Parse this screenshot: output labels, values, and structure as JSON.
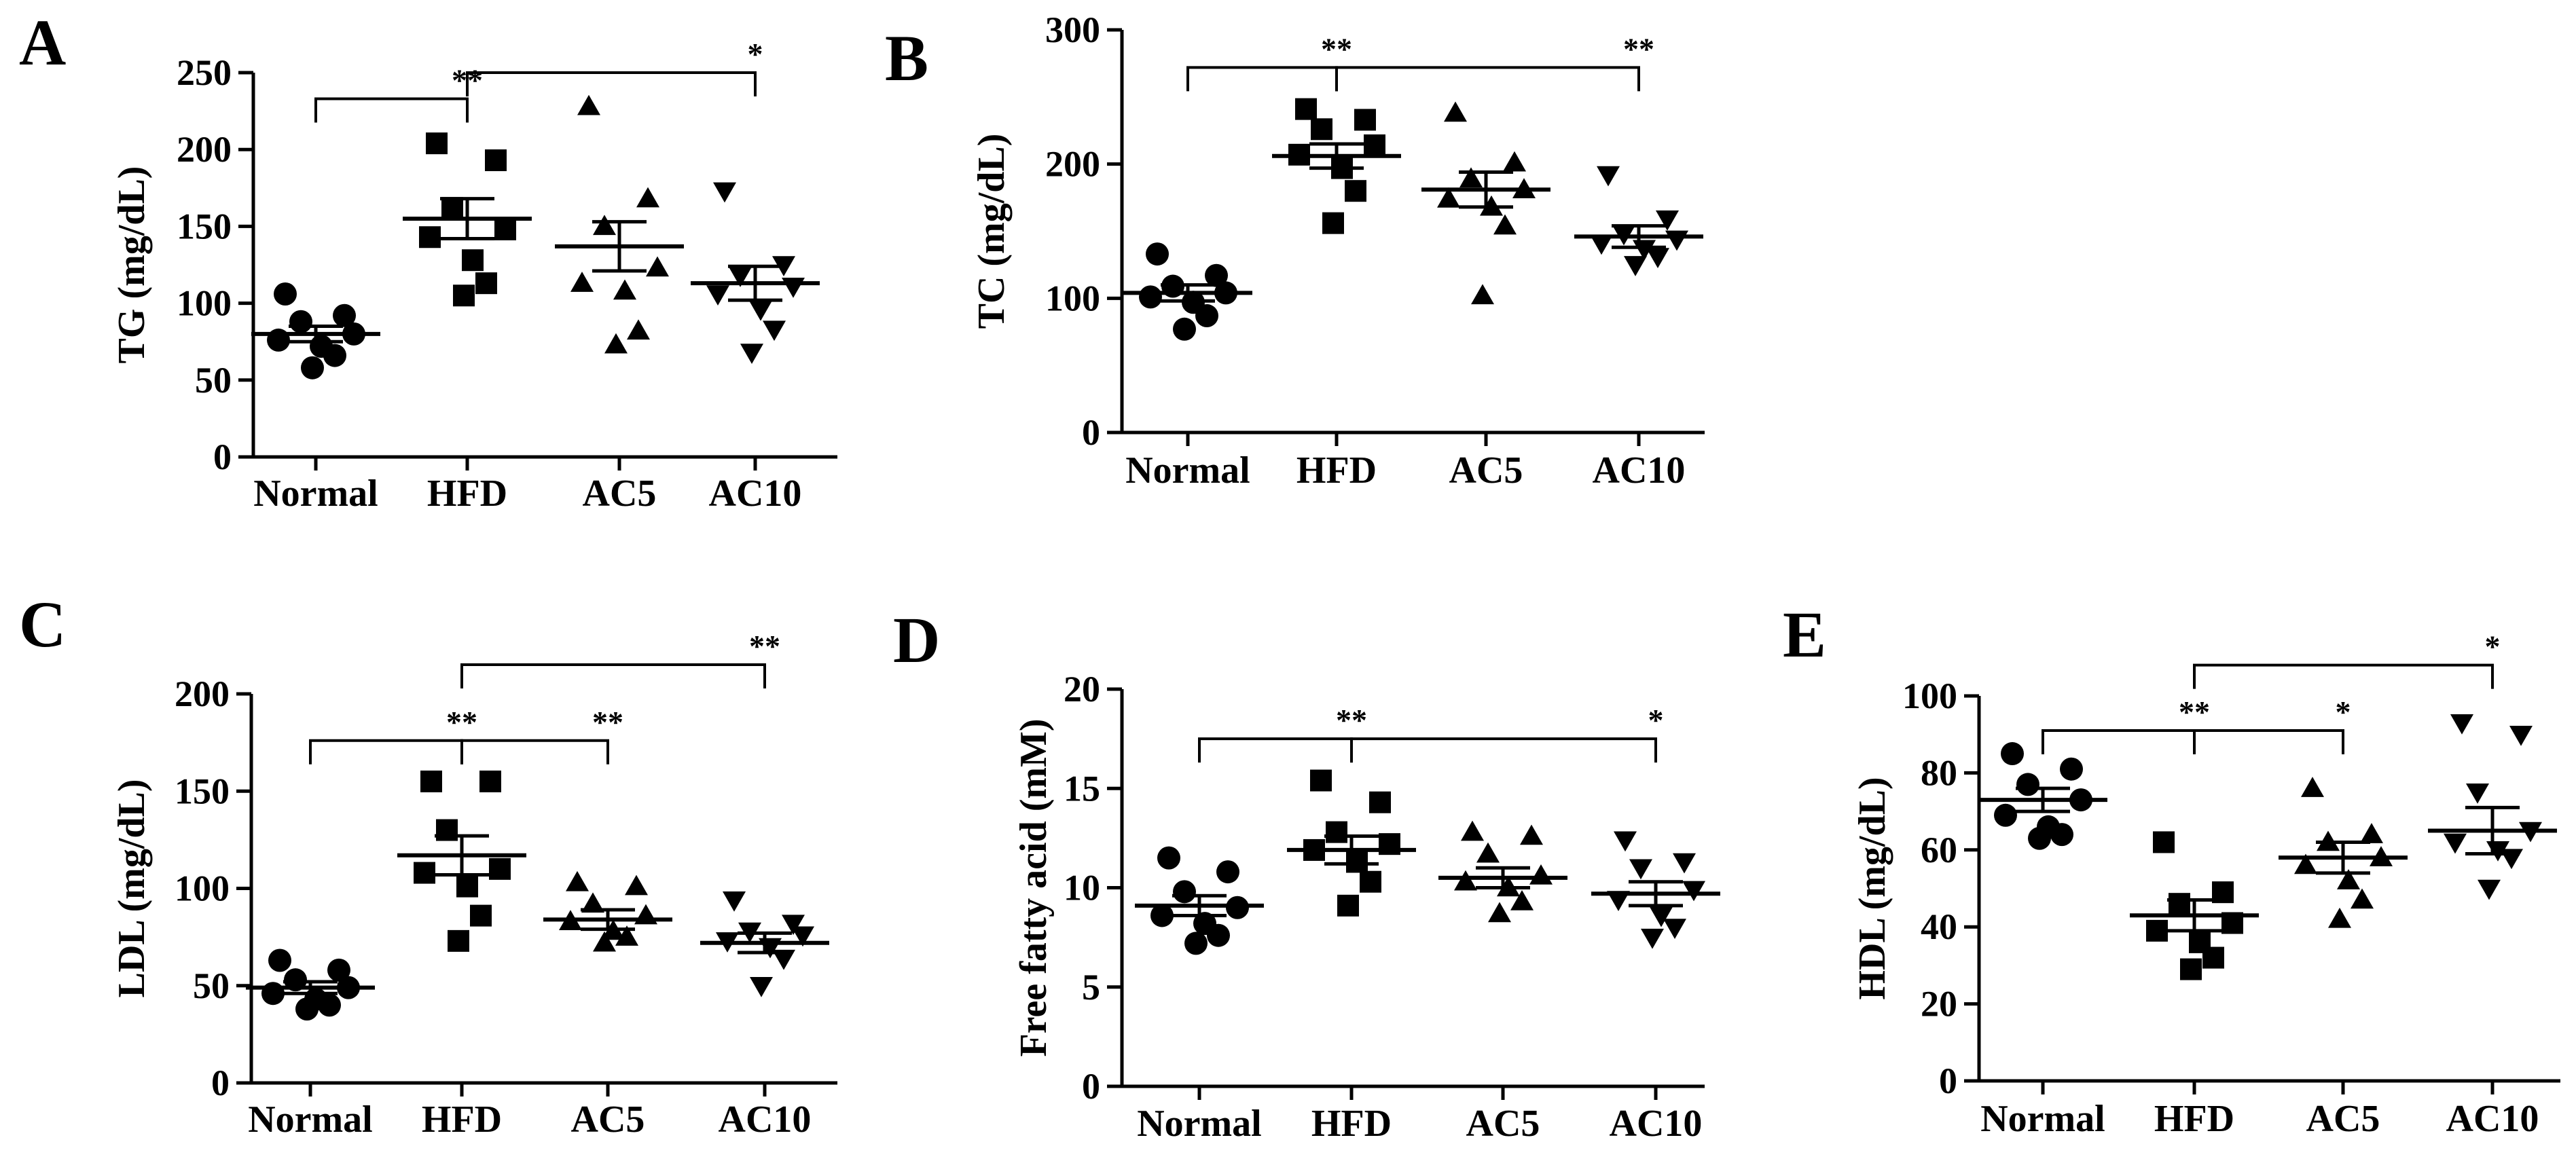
{
  "figure": {
    "groups": [
      "Normal",
      "HFD",
      "AC5",
      "AC10"
    ]
  },
  "chart_data": [
    {
      "panel": "A",
      "type": "scatter",
      "ylabel": "TG (mg/dL)",
      "ylim": [
        0,
        250
      ],
      "yticks": [
        0,
        50,
        100,
        150,
        200,
        250
      ],
      "categories": [
        "Normal",
        "HFD",
        "AC5",
        "AC10"
      ],
      "markers": [
        "circle",
        "square",
        "triangle-up",
        "triangle-down"
      ],
      "points": [
        [
          106,
          92,
          88,
          80,
          76,
          72,
          66,
          58
        ],
        [
          204,
          193,
          162,
          148,
          143,
          128,
          113,
          105
        ],
        [
          228,
          168,
          150,
          123,
          113,
          108,
          82,
          73
        ],
        [
          173,
          125,
          118,
          111,
          106,
          96,
          83,
          68
        ]
      ],
      "mean": [
        80,
        155,
        137,
        113
      ],
      "sem": [
        5,
        13,
        16,
        11
      ],
      "annotations": [
        {
          "from": 0,
          "to": 1,
          "y": 233,
          "label": "**"
        },
        {
          "from": 1,
          "to": 3,
          "y": 250,
          "label": "*"
        }
      ]
    },
    {
      "panel": "B",
      "type": "scatter",
      "ylabel": "TC (mg/dL)",
      "ylim": [
        0,
        300
      ],
      "yticks": [
        0,
        100,
        200,
        300
      ],
      "categories": [
        "Normal",
        "HFD",
        "AC5",
        "AC10"
      ],
      "markers": [
        "circle",
        "square",
        "triangle-up",
        "triangle-down"
      ],
      "points": [
        [
          133,
          117,
          109,
          104,
          101,
          97,
          87,
          77
        ],
        [
          241,
          233,
          226,
          214,
          207,
          197,
          180,
          156
        ],
        [
          238,
          201,
          189,
          181,
          174,
          168,
          154,
          102
        ],
        [
          192,
          159,
          148,
          144,
          141,
          137,
          131,
          125
        ]
      ],
      "mean": [
        104,
        206,
        181,
        146
      ],
      "sem": [
        6,
        9,
        13,
        8
      ],
      "annotations": [
        {
          "from": 0,
          "to": 1,
          "y": 272,
          "label": "**"
        },
        {
          "from": 1,
          "to": 3,
          "y": 272,
          "label": "**"
        }
      ]
    },
    {
      "panel": "C",
      "type": "scatter",
      "ylabel": "LDL (mg/dL)",
      "ylim": [
        0,
        200
      ],
      "yticks": [
        0,
        50,
        100,
        150,
        200
      ],
      "categories": [
        "Normal",
        "HFD",
        "AC5",
        "AC10"
      ],
      "markers": [
        "circle",
        "square",
        "triangle-up",
        "triangle-down"
      ],
      "points": [
        [
          63,
          58,
          53,
          49,
          46,
          43,
          40,
          38
        ],
        [
          155,
          155,
          130,
          110,
          108,
          101,
          86,
          73
        ],
        [
          103,
          101,
          92,
          86,
          83,
          78,
          75,
          72
        ],
        [
          94,
          82,
          78,
          76,
          73,
          70,
          64,
          50
        ]
      ],
      "mean": [
        49,
        117,
        84,
        72
      ],
      "sem": [
        3,
        10,
        5,
        5
      ],
      "annotations": [
        {
          "from": 0,
          "to": 1,
          "y": 176,
          "label": "**"
        },
        {
          "from": 1,
          "to": 2,
          "y": 176,
          "label": "**"
        },
        {
          "from": 1,
          "to": 3,
          "y": 215,
          "label": "**"
        }
      ]
    },
    {
      "panel": "D",
      "type": "scatter",
      "ylabel": "Free fatty acid (mM)",
      "ylim": [
        0,
        20
      ],
      "yticks": [
        0,
        5,
        10,
        15,
        20
      ],
      "categories": [
        "Normal",
        "HFD",
        "AC5",
        "AC10"
      ],
      "markers": [
        "circle",
        "square",
        "triangle-up",
        "triangle-down"
      ],
      "points": [
        [
          11.5,
          10.8,
          9.8,
          9.0,
          8.6,
          8.2,
          7.6,
          7.2
        ],
        [
          15.4,
          14.3,
          12.8,
          12.2,
          11.9,
          11.3,
          10.3,
          9.1
        ],
        [
          12.8,
          12.6,
          11.7,
          10.6,
          10.3,
          10.0,
          9.3,
          8.7
        ],
        [
          12.4,
          11.3,
          11.0,
          9.9,
          9.4,
          8.6,
          8.0,
          7.5
        ]
      ],
      "mean": [
        9.1,
        11.9,
        10.5,
        9.7
      ],
      "sem": [
        0.5,
        0.7,
        0.5,
        0.6
      ],
      "annotations": [
        {
          "from": 0,
          "to": 1,
          "y": 17.5,
          "label": "**"
        },
        {
          "from": 1,
          "to": 3,
          "y": 17.5,
          "label": "*"
        }
      ]
    },
    {
      "panel": "E",
      "type": "scatter",
      "ylabel": "HDL (mg/dL)",
      "ylim": [
        0,
        100
      ],
      "yticks": [
        0,
        20,
        40,
        60,
        80,
        100
      ],
      "categories": [
        "Normal",
        "HFD",
        "AC5",
        "AC10"
      ],
      "markers": [
        "circle",
        "square",
        "triangle-up",
        "triangle-down"
      ],
      "points": [
        [
          85,
          81,
          77,
          73,
          69,
          66,
          64,
          63
        ],
        [
          62,
          49,
          46,
          41,
          39,
          36,
          32,
          29
        ],
        [
          76,
          64,
          62,
          58,
          56,
          52,
          47,
          42
        ],
        [
          93,
          90,
          75,
          65,
          62,
          60,
          58,
          50
        ]
      ],
      "mean": [
        73,
        43,
        58,
        65
      ],
      "sem": [
        3,
        4,
        4,
        6
      ],
      "annotations": [
        {
          "from": 0,
          "to": 1,
          "y": 91,
          "label": "**"
        },
        {
          "from": 1,
          "to": 2,
          "y": 91,
          "label": "*"
        },
        {
          "from": 1,
          "to": 3,
          "y": 108,
          "label": "*"
        }
      ]
    }
  ]
}
